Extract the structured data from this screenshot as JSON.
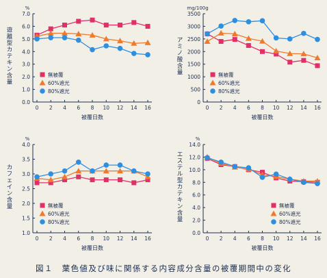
{
  "colors": {
    "ink": "#1d2f52",
    "paper": "#f2efe6",
    "series": [
      "#e0306a",
      "#ef7a2c",
      "#2e8fe0"
    ]
  },
  "legend_labels": [
    "無被覆",
    "60%遮光",
    "80%遮光"
  ],
  "caption": "図１　葉色値及び味に関係する内容成分含量の被覆期間中の変化",
  "chart_data": [
    {
      "type": "line",
      "unit": "%",
      "ylabel": "遊離型カテキン含量",
      "xlabel": "被覆日数",
      "ylim": [
        0,
        7
      ],
      "yticks": [
        "0.0",
        "1.0",
        "2.0",
        "3.0",
        "4.0",
        "5.0",
        "6.0",
        "7.0"
      ],
      "x": [
        0,
        2,
        4,
        6,
        8,
        10,
        12,
        14,
        16
      ],
      "legend_position": "bottom-left",
      "series": [
        {
          "name": "無被覆",
          "marker": "square",
          "values": [
            5.3,
            5.8,
            6.1,
            6.4,
            6.5,
            6.1,
            6.1,
            6.3,
            6.0
          ]
        },
        {
          "name": "60%遮光",
          "marker": "triangle",
          "values": [
            5.2,
            5.45,
            5.45,
            5.4,
            5.3,
            5.0,
            4.85,
            4.65,
            4.7
          ]
        },
        {
          "name": "80%遮光",
          "marker": "circle",
          "values": [
            5.0,
            5.1,
            5.1,
            4.9,
            4.15,
            4.45,
            4.25,
            3.85,
            3.75
          ]
        }
      ]
    },
    {
      "type": "line",
      "unit": "mg/100g",
      "ylabel": "アミノ酸含量",
      "xlabel": "被覆日数",
      "ylim": [
        0,
        3500
      ],
      "yticks": [
        "0",
        "500",
        "1000",
        "1500",
        "2000",
        "2500",
        "3000",
        "3500"
      ],
      "x": [
        0,
        2,
        4,
        6,
        8,
        10,
        12,
        14,
        16
      ],
      "legend_position": "bottom-left",
      "series": [
        {
          "name": "無被覆",
          "marker": "square",
          "values": [
            2700,
            2400,
            2480,
            2240,
            2000,
            1900,
            1580,
            1650,
            1440
          ]
        },
        {
          "name": "60%遮光",
          "marker": "triangle",
          "values": [
            2400,
            2730,
            2700,
            2520,
            2410,
            2020,
            1920,
            1910,
            1750
          ]
        },
        {
          "name": "80%遮光",
          "marker": "circle",
          "values": [
            2700,
            3010,
            3230,
            3180,
            3220,
            2540,
            2500,
            2720,
            2480
          ]
        }
      ]
    },
    {
      "type": "line",
      "unit": "%",
      "ylabel": "カフェイン含量",
      "xlabel": "被覆日数",
      "ylim": [
        1.0,
        4.0
      ],
      "yticks": [
        "1.0",
        "1.5",
        "2.0",
        "2.5",
        "3.0",
        "3.5",
        "4.0"
      ],
      "x": [
        0,
        2,
        4,
        6,
        8,
        10,
        12,
        14,
        16
      ],
      "legend_position": "bottom-left",
      "series": [
        {
          "name": "無被覆",
          "marker": "square",
          "values": [
            2.7,
            2.7,
            2.8,
            2.9,
            2.8,
            2.8,
            2.8,
            2.7,
            2.8
          ]
        },
        {
          "name": "60%遮光",
          "marker": "triangle",
          "values": [
            2.85,
            2.8,
            2.9,
            3.1,
            3.1,
            3.1,
            3.1,
            3.1,
            2.9
          ]
        },
        {
          "name": "80%遮光",
          "marker": "circle",
          "values": [
            2.9,
            3.0,
            3.1,
            3.4,
            3.1,
            3.3,
            3.3,
            3.1,
            3.0
          ]
        }
      ]
    },
    {
      "type": "line",
      "unit": "%",
      "ylabel": "エステル型カテキン含量",
      "xlabel": "被覆日数",
      "ylim": [
        0,
        14
      ],
      "yticks": [
        "0.0",
        "2.0",
        "4.0",
        "6.0",
        "8.0",
        "10.0",
        "12.0",
        "14.0"
      ],
      "x": [
        0,
        2,
        4,
        6,
        8,
        10,
        12,
        14,
        16
      ],
      "legend_position": "bottom-right",
      "series": [
        {
          "name": "無被覆",
          "marker": "square",
          "values": [
            11.8,
            10.8,
            10.5,
            10.0,
            9.6,
            8.7,
            8.2,
            8.1,
            8.0
          ]
        },
        {
          "name": "60%遮光",
          "marker": "triangle",
          "values": [
            12.0,
            11.0,
            10.4,
            10.1,
            9.2,
            8.9,
            8.5,
            8.2,
            8.2
          ]
        },
        {
          "name": "80%遮光",
          "marker": "circle",
          "values": [
            11.9,
            11.2,
            10.5,
            10.3,
            8.8,
            9.3,
            8.5,
            8.0,
            7.8
          ]
        }
      ]
    }
  ]
}
